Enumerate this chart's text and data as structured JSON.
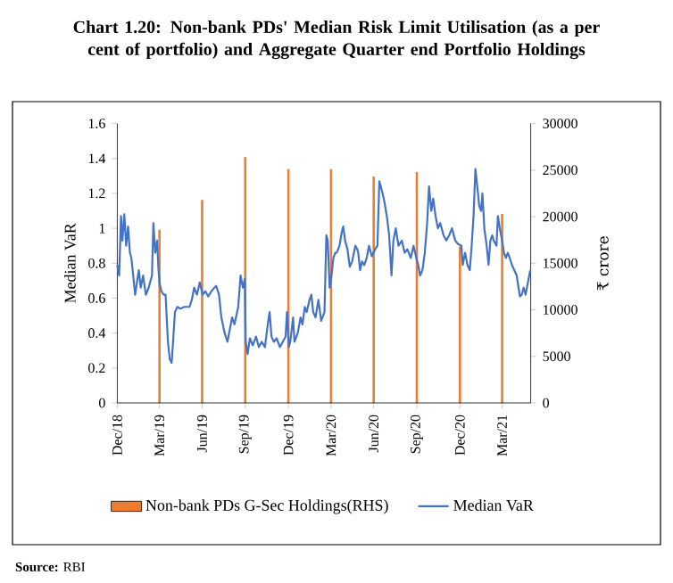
{
  "chart_data": {
    "type": "line",
    "title": "Chart 1.20: Non-bank PDs' Median Risk Limit Utilisation (as a per cent of portfolio) and Aggregate Quarter end Portfolio Holdings",
    "ylabel": "Median VaR",
    "y2label": "₹ crore",
    "xlim": [
      "2018-12-31",
      "2021-05-31"
    ],
    "xticks": [
      {
        "value": "2018-12-31",
        "label": "Dec/18"
      },
      {
        "value": "2019-03-31",
        "label": "Mar/19"
      },
      {
        "value": "2019-06-30",
        "label": "Jun/19"
      },
      {
        "value": "2019-09-30",
        "label": "Sep/19"
      },
      {
        "value": "2019-12-31",
        "label": "Dec/19"
      },
      {
        "value": "2020-03-31",
        "label": "Mar/20"
      },
      {
        "value": "2020-06-30",
        "label": "Jun/20"
      },
      {
        "value": "2020-09-30",
        "label": "Sep/20"
      },
      {
        "value": "2020-12-31",
        "label": "Dec/20"
      },
      {
        "value": "2021-03-31",
        "label": "Mar/21"
      }
    ],
    "ylim": [
      0,
      1.6
    ],
    "yticks": [
      0,
      0.2,
      0.4,
      0.6,
      0.8,
      1,
      1.2,
      1.4,
      1.6
    ],
    "y2lim": [
      0,
      30000
    ],
    "y2ticks": [
      0,
      5000,
      10000,
      15000,
      20000,
      25000,
      30000
    ],
    "legend": "bottom",
    "series": [
      {
        "name": "Non-bank PDs G-Sec Holdings(RHS)",
        "type": "bar",
        "axis": "y2",
        "color": "#ed7d31",
        "x": [
          "2019-03-31",
          "2019-06-30",
          "2019-09-30",
          "2019-12-31",
          "2020-03-31",
          "2020-06-30",
          "2020-09-30",
          "2020-12-31",
          "2021-03-31"
        ],
        "values": [
          18600,
          21800,
          26400,
          25100,
          25100,
          24300,
          24800,
          16800,
          20300
        ]
      },
      {
        "name": "Median VaR",
        "color": "#4472c4",
        "x": [
          "2018-12-31",
          "2019-01-04",
          "2019-01-08",
          "2019-01-11",
          "2019-01-15",
          "2019-01-19",
          "2019-01-23",
          "2019-01-27",
          "2019-01-30",
          "2019-02-03",
          "2019-02-07",
          "2019-02-11",
          "2019-02-15",
          "2019-02-19",
          "2019-02-24",
          "2019-03-02",
          "2019-03-08",
          "2019-03-15",
          "2019-03-18",
          "2019-03-22",
          "2019-03-26",
          "2019-03-29",
          "2019-03-31",
          "2019-04-04",
          "2019-04-09",
          "2019-04-13",
          "2019-04-18",
          "2019-04-22",
          "2019-04-26",
          "2019-04-29",
          "2019-05-03",
          "2019-05-08",
          "2019-05-15",
          "2019-05-23",
          "2019-06-03",
          "2019-06-08",
          "2019-06-13",
          "2019-06-19",
          "2019-06-25",
          "2019-07-01",
          "2019-07-07",
          "2019-07-13",
          "2019-07-20",
          "2019-07-26",
          "2019-07-30",
          "2019-08-05",
          "2019-08-10",
          "2019-08-17",
          "2019-08-23",
          "2019-08-28",
          "2019-09-02",
          "2019-09-07",
          "2019-09-15",
          "2019-09-20",
          "2019-09-25",
          "2019-09-29",
          "2019-10-01",
          "2019-10-05",
          "2019-10-10",
          "2019-10-16",
          "2019-10-23",
          "2019-10-29",
          "2019-11-04",
          "2019-11-11",
          "2019-11-17",
          "2019-11-21",
          "2019-11-25",
          "2019-11-30",
          "2019-12-06",
          "2019-12-13",
          "2019-12-19",
          "2019-12-25",
          "2019-12-28",
          "2020-01-01",
          "2020-01-04",
          "2020-01-10",
          "2020-01-13",
          "2020-01-20",
          "2020-01-26",
          "2020-01-30",
          "2020-02-04",
          "2020-02-08",
          "2020-02-14",
          "2020-02-18",
          "2020-02-22",
          "2020-02-27",
          "2020-03-04",
          "2020-03-10",
          "2020-03-17",
          "2020-03-21",
          "2020-03-24",
          "2020-03-28",
          "2020-04-01",
          "2020-04-05",
          "2020-04-09",
          "2020-04-12",
          "2020-04-18",
          "2020-04-23",
          "2020-04-26",
          "2020-04-30",
          "2020-05-05",
          "2020-05-10",
          "2020-05-15",
          "2020-05-22",
          "2020-05-26",
          "2020-05-28",
          "2020-06-01",
          "2020-06-05",
          "2020-06-10",
          "2020-06-15",
          "2020-06-20",
          "2020-06-26",
          "2020-07-03",
          "2020-07-08",
          "2020-07-12",
          "2020-07-15",
          "2020-07-19",
          "2020-07-23",
          "2020-07-28",
          "2020-08-02",
          "2020-08-07",
          "2020-08-11",
          "2020-08-16",
          "2020-08-22",
          "2020-08-29",
          "2020-09-04",
          "2020-09-10",
          "2020-09-17",
          "2020-09-23",
          "2020-09-29",
          "2020-10-03",
          "2020-10-07",
          "2020-10-12",
          "2020-10-17",
          "2020-10-22",
          "2020-10-26",
          "2020-10-31",
          "2020-11-04",
          "2020-11-09",
          "2020-11-14",
          "2020-11-19",
          "2020-11-26",
          "2020-12-02",
          "2020-12-08",
          "2020-12-14",
          "2020-12-21",
          "2020-12-27",
          "2021-01-03",
          "2021-01-06",
          "2021-01-11",
          "2021-01-16",
          "2021-01-21",
          "2021-01-25",
          "2021-01-29",
          "2021-02-02",
          "2021-02-06",
          "2021-02-10",
          "2021-02-14",
          "2021-02-17",
          "2021-02-21",
          "2021-02-26",
          "2021-03-02",
          "2021-03-06",
          "2021-03-10",
          "2021-03-13",
          "2021-03-19",
          "2021-03-22",
          "2021-03-26",
          "2021-03-31",
          "2021-04-04",
          "2021-04-08",
          "2021-04-12",
          "2021-04-15",
          "2021-04-21",
          "2021-04-26",
          "2021-05-01",
          "2021-05-05",
          "2021-05-08",
          "2021-05-12",
          "2021-05-16",
          "2021-05-20",
          "2021-05-25",
          "2021-05-30"
        ],
        "values": [
          0.79,
          0.73,
          1.07,
          0.93,
          1.08,
          0.9,
          1.01,
          0.86,
          0.83,
          0.73,
          0.62,
          0.69,
          0.76,
          0.66,
          0.73,
          0.62,
          0.66,
          0.73,
          1.03,
          0.86,
          0.93,
          0.76,
          0.69,
          0.64,
          0.62,
          0.62,
          0.35,
          0.25,
          0.23,
          0.35,
          0.52,
          0.55,
          0.54,
          0.55,
          0.55,
          0.59,
          0.66,
          0.62,
          0.69,
          0.62,
          0.64,
          0.61,
          0.64,
          0.66,
          0.67,
          0.62,
          0.49,
          0.4,
          0.35,
          0.42,
          0.49,
          0.45,
          0.55,
          0.73,
          0.66,
          0.71,
          0.35,
          0.28,
          0.37,
          0.33,
          0.38,
          0.32,
          0.35,
          0.32,
          0.45,
          0.52,
          0.38,
          0.35,
          0.37,
          0.32,
          0.35,
          0.38,
          0.52,
          0.32,
          0.35,
          0.49,
          0.35,
          0.4,
          0.49,
          0.45,
          0.55,
          0.52,
          0.59,
          0.62,
          0.52,
          0.49,
          0.59,
          0.47,
          0.52,
          0.96,
          0.93,
          0.66,
          0.73,
          0.83,
          0.86,
          0.86,
          0.9,
          0.98,
          1.01,
          0.93,
          0.88,
          0.78,
          0.81,
          0.9,
          0.88,
          0.86,
          0.76,
          0.81,
          0.79,
          0.83,
          0.9,
          0.84,
          0.88,
          0.9,
          1.27,
          1.24,
          1.2,
          1.15,
          1.07,
          0.96,
          0.73,
          0.93,
          1.0,
          0.9,
          0.93,
          0.86,
          0.88,
          0.83,
          0.9,
          0.83,
          0.79,
          0.73,
          0.76,
          0.86,
          1.03,
          1.24,
          1.1,
          1.17,
          1.07,
          1.0,
          1.03,
          0.96,
          0.93,
          0.96,
          1.0,
          0.93,
          0.91,
          0.9,
          0.79,
          0.86,
          0.79,
          0.76,
          0.9,
          1.07,
          1.34,
          1.24,
          1.13,
          1.1,
          1.2,
          1.0,
          0.9,
          0.79,
          0.93,
          0.96,
          0.93,
          0.9,
          1.07,
          1.0,
          0.93,
          0.86,
          0.83,
          0.86,
          0.84,
          0.79,
          0.76,
          0.73,
          0.66,
          0.61,
          0.62,
          0.66,
          0.62,
          0.69,
          0.76
        ]
      }
    ],
    "annotations": [
      "**Source:** RBI"
    ]
  }
}
